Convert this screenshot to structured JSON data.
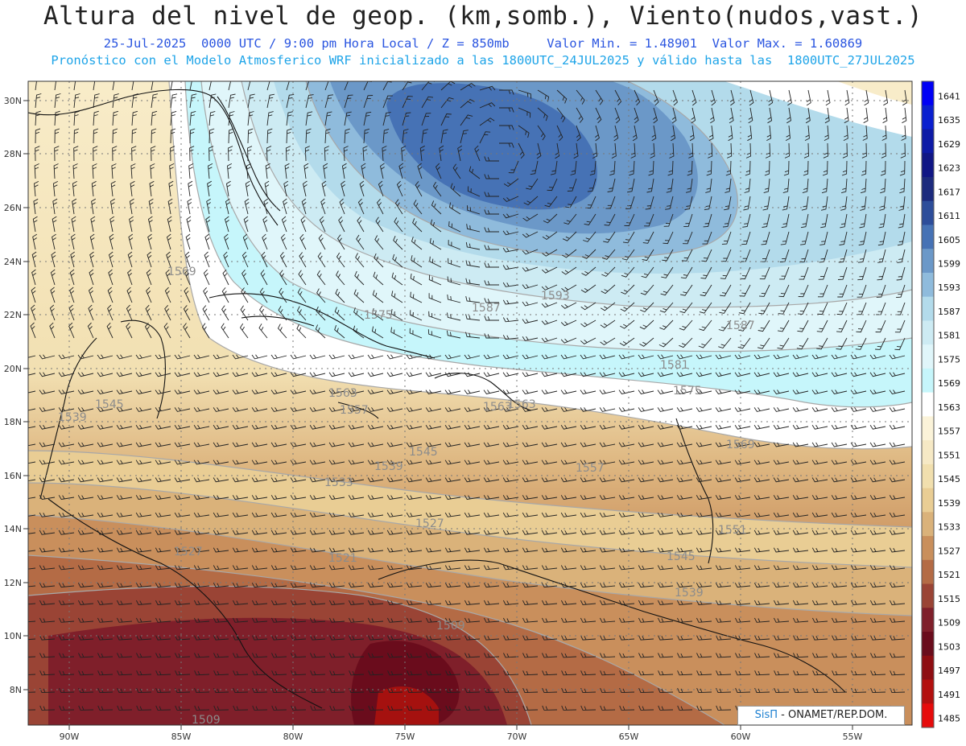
{
  "header": {
    "title": "Altura del nivel de geop. (km,somb.), Viento(nudos,vast.)",
    "line1": "25-Jul-2025  0000 UTC / 9:00 pm Hora Local / Z = 850mb     Valor Min. = 1.48901  Valor Max. = 1.60869",
    "line2": "Pronóstico con el Modelo Atmosferico WRF inicializado a las 1800UTC_24JUL2025 y válido hasta las  1800UTC_27JUL2025"
  },
  "axes": {
    "lat_labels": [
      "30N",
      "28N",
      "26N",
      "24N",
      "22N",
      "20N",
      "18N",
      "16N",
      "14N",
      "12N",
      "10N",
      "8N"
    ],
    "lon_labels": [
      "90W",
      "85W",
      "80W",
      "75W",
      "70W",
      "65W",
      "60W",
      "55W"
    ]
  },
  "colorbar": {
    "levels": [
      "1641",
      "1635",
      "1629",
      "1623",
      "1617",
      "1611",
      "1605",
      "1599",
      "1593",
      "1587",
      "1581",
      "1575",
      "1569",
      "1563",
      "1557",
      "1551",
      "1545",
      "1539",
      "1533",
      "1527",
      "1521",
      "1515",
      "1509",
      "1503",
      "1497",
      "1491",
      "1485"
    ],
    "colors": [
      "#0000f5",
      "#0a1fcf",
      "#0d1aa6",
      "#101685",
      "#1c2a7d",
      "#2d4d9a",
      "#4672b5",
      "#6b98c8",
      "#8fbbdc",
      "#b3dbeb",
      "#cdebf3",
      "#e0f6fa",
      "#c6f6fb",
      "#ffffff",
      "#fbf3d9",
      "#f6e9c5",
      "#f1dfae",
      "#e9cd94",
      "#dab27a",
      "#c98f5c",
      "#b46b45",
      "#9a4435",
      "#7f1f2a",
      "#6a0c1c",
      "#8e0d12",
      "#b3100f",
      "#e60b0b"
    ]
  },
  "contour_labels": [
    {
      "text": "1569"
    },
    {
      "text": "1575"
    },
    {
      "text": "1587"
    },
    {
      "text": "1593"
    },
    {
      "text": "1587"
    },
    {
      "text": "1581"
    },
    {
      "text": "1575"
    },
    {
      "text": "1563"
    },
    {
      "text": "1557"
    },
    {
      "text": "1563"
    },
    {
      "text": "1569"
    },
    {
      "text": "1545"
    },
    {
      "text": "1539"
    },
    {
      "text": "1557"
    },
    {
      "text": "1539"
    },
    {
      "text": "1545"
    },
    {
      "text": "1533"
    },
    {
      "text": "1527"
    },
    {
      "text": "1521"
    },
    {
      "text": "1527"
    },
    {
      "text": "1551"
    },
    {
      "text": "1545"
    },
    {
      "text": "1539"
    },
    {
      "text": "1509"
    },
    {
      "text": "1509"
    },
    {
      "text": "1563"
    }
  ],
  "credit": {
    "brand": "SisΠ",
    "org": " - ONAMET/REP.DOM."
  }
}
